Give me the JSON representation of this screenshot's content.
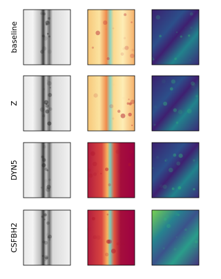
{
  "rows": [
    {
      "label": "baseline"
    },
    {
      "label": "Z"
    },
    {
      "label": "DYN5"
    },
    {
      "label": "CSFBH2"
    }
  ]
}
